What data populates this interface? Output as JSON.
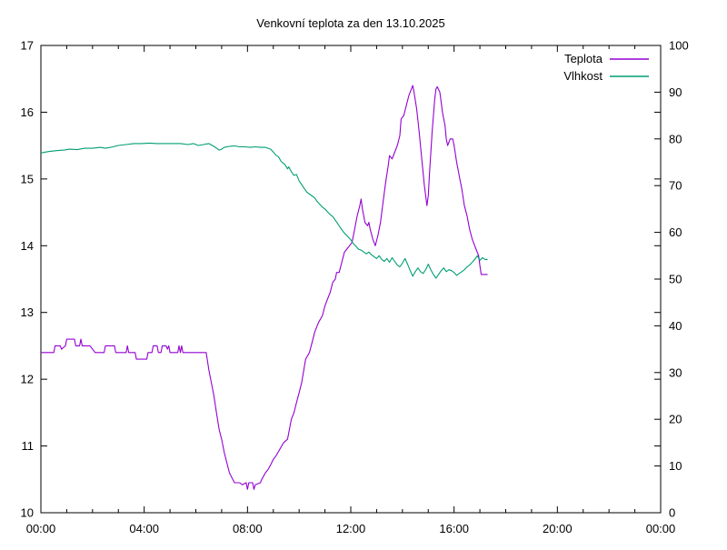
{
  "chart_data": {
    "type": "line",
    "title": "Venkovní teplota za den 13.10.2025",
    "grid": "off",
    "legend_position": "top-right-inside",
    "x_axis": {
      "unit": "hours",
      "range": [
        0,
        24
      ],
      "major_ticks": [
        0,
        4,
        8,
        12,
        16,
        20,
        24
      ],
      "major_tick_labels": [
        "00:00",
        "04:00",
        "08:00",
        "12:00",
        "16:00",
        "20:00",
        "00:00"
      ],
      "minor_tick_step": 1
    },
    "y_left_axis": {
      "range": [
        10,
        17
      ],
      "ticks": [
        10,
        11,
        12,
        13,
        14,
        15,
        16,
        17
      ],
      "tick_labels": [
        "10",
        "11",
        "12",
        "13",
        "14",
        "15",
        "16",
        "17"
      ]
    },
    "y_right_axis": {
      "range": [
        0,
        100
      ],
      "ticks": [
        0,
        10,
        20,
        30,
        40,
        50,
        60,
        70,
        80,
        90,
        100
      ],
      "tick_labels": [
        "0",
        "10",
        "20",
        "30",
        "40",
        "50",
        "60",
        "70",
        "80",
        "90",
        "100"
      ],
      "mirror_left_ticks": [
        11,
        12,
        13,
        14,
        15,
        16
      ]
    },
    "series": [
      {
        "name": "Teplota",
        "axis": "left",
        "color": "#9400d3",
        "points": [
          [
            0.0,
            12.4
          ],
          [
            0.5,
            12.4
          ],
          [
            0.55,
            12.5
          ],
          [
            0.75,
            12.5
          ],
          [
            0.8,
            12.45
          ],
          [
            0.95,
            12.5
          ],
          [
            1.0,
            12.6
          ],
          [
            1.3,
            12.6
          ],
          [
            1.35,
            12.5
          ],
          [
            1.5,
            12.5
          ],
          [
            1.55,
            12.6
          ],
          [
            1.6,
            12.5
          ],
          [
            1.9,
            12.5
          ],
          [
            2.0,
            12.45
          ],
          [
            2.1,
            12.4
          ],
          [
            2.45,
            12.4
          ],
          [
            2.5,
            12.5
          ],
          [
            2.85,
            12.5
          ],
          [
            2.9,
            12.4
          ],
          [
            3.3,
            12.4
          ],
          [
            3.35,
            12.5
          ],
          [
            3.4,
            12.4
          ],
          [
            3.65,
            12.4
          ],
          [
            3.7,
            12.3
          ],
          [
            4.1,
            12.3
          ],
          [
            4.15,
            12.4
          ],
          [
            4.3,
            12.4
          ],
          [
            4.35,
            12.5
          ],
          [
            4.5,
            12.5
          ],
          [
            4.55,
            12.4
          ],
          [
            4.65,
            12.4
          ],
          [
            4.7,
            12.5
          ],
          [
            4.85,
            12.5
          ],
          [
            4.9,
            12.45
          ],
          [
            4.95,
            12.5
          ],
          [
            5.0,
            12.4
          ],
          [
            5.3,
            12.4
          ],
          [
            5.35,
            12.5
          ],
          [
            5.4,
            12.4
          ],
          [
            5.45,
            12.5
          ],
          [
            5.5,
            12.4
          ],
          [
            6.4,
            12.4
          ],
          [
            6.5,
            12.15
          ],
          [
            6.55,
            12.05
          ],
          [
            6.65,
            11.85
          ],
          [
            6.7,
            11.75
          ],
          [
            6.8,
            11.5
          ],
          [
            6.9,
            11.25
          ],
          [
            7.0,
            11.1
          ],
          [
            7.1,
            10.9
          ],
          [
            7.2,
            10.75
          ],
          [
            7.3,
            10.6
          ],
          [
            7.4,
            10.52
          ],
          [
            7.5,
            10.45
          ],
          [
            7.7,
            10.45
          ],
          [
            7.8,
            10.42
          ],
          [
            7.95,
            10.45
          ],
          [
            8.0,
            10.35
          ],
          [
            8.05,
            10.45
          ],
          [
            8.2,
            10.45
          ],
          [
            8.25,
            10.35
          ],
          [
            8.3,
            10.42
          ],
          [
            8.5,
            10.45
          ],
          [
            8.55,
            10.5
          ],
          [
            8.7,
            10.6
          ],
          [
            8.8,
            10.65
          ],
          [
            8.9,
            10.72
          ],
          [
            9.0,
            10.8
          ],
          [
            9.1,
            10.85
          ],
          [
            9.25,
            10.95
          ],
          [
            9.4,
            11.05
          ],
          [
            9.55,
            11.1
          ],
          [
            9.6,
            11.2
          ],
          [
            9.7,
            11.4
          ],
          [
            9.8,
            11.5
          ],
          [
            9.9,
            11.65
          ],
          [
            10.0,
            11.8
          ],
          [
            10.1,
            11.95
          ],
          [
            10.25,
            12.3
          ],
          [
            10.4,
            12.4
          ],
          [
            10.5,
            12.55
          ],
          [
            10.6,
            12.7
          ],
          [
            10.75,
            12.85
          ],
          [
            10.9,
            12.95
          ],
          [
            11.0,
            13.1
          ],
          [
            11.1,
            13.2
          ],
          [
            11.2,
            13.3
          ],
          [
            11.3,
            13.45
          ],
          [
            11.4,
            13.5
          ],
          [
            11.45,
            13.6
          ],
          [
            11.55,
            13.6
          ],
          [
            11.65,
            13.75
          ],
          [
            11.75,
            13.9
          ],
          [
            11.85,
            13.95
          ],
          [
            11.95,
            14.0
          ],
          [
            12.05,
            14.05
          ],
          [
            12.15,
            14.25
          ],
          [
            12.25,
            14.45
          ],
          [
            12.35,
            14.6
          ],
          [
            12.4,
            14.7
          ],
          [
            12.45,
            14.55
          ],
          [
            12.5,
            14.45
          ],
          [
            12.55,
            14.35
          ],
          [
            12.65,
            14.3
          ],
          [
            12.7,
            14.35
          ],
          [
            12.75,
            14.25
          ],
          [
            12.85,
            14.1
          ],
          [
            12.95,
            14.0
          ],
          [
            13.05,
            14.15
          ],
          [
            13.15,
            14.35
          ],
          [
            13.25,
            14.65
          ],
          [
            13.35,
            14.95
          ],
          [
            13.45,
            15.2
          ],
          [
            13.5,
            15.35
          ],
          [
            13.6,
            15.3
          ],
          [
            13.7,
            15.4
          ],
          [
            13.8,
            15.5
          ],
          [
            13.9,
            15.65
          ],
          [
            13.95,
            15.9
          ],
          [
            14.05,
            15.95
          ],
          [
            14.15,
            16.1
          ],
          [
            14.25,
            16.25
          ],
          [
            14.35,
            16.35
          ],
          [
            14.4,
            16.4
          ],
          [
            14.45,
            16.3
          ],
          [
            14.55,
            16.05
          ],
          [
            14.65,
            15.7
          ],
          [
            14.75,
            15.3
          ],
          [
            14.85,
            14.9
          ],
          [
            14.95,
            14.6
          ],
          [
            15.0,
            14.75
          ],
          [
            15.05,
            15.1
          ],
          [
            15.15,
            15.7
          ],
          [
            15.25,
            16.2
          ],
          [
            15.3,
            16.35
          ],
          [
            15.35,
            16.38
          ],
          [
            15.45,
            16.3
          ],
          [
            15.5,
            16.15
          ],
          [
            15.55,
            16.0
          ],
          [
            15.65,
            15.8
          ],
          [
            15.7,
            15.6
          ],
          [
            15.75,
            15.5
          ],
          [
            15.8,
            15.55
          ],
          [
            15.85,
            15.6
          ],
          [
            15.95,
            15.6
          ],
          [
            16.0,
            15.5
          ],
          [
            16.1,
            15.25
          ],
          [
            16.2,
            15.05
          ],
          [
            16.3,
            14.85
          ],
          [
            16.4,
            14.6
          ],
          [
            16.5,
            14.45
          ],
          [
            16.6,
            14.25
          ],
          [
            16.7,
            14.1
          ],
          [
            16.8,
            14.0
          ],
          [
            16.85,
            13.95
          ],
          [
            16.95,
            13.85
          ],
          [
            17.0,
            13.7
          ],
          [
            17.05,
            13.57
          ],
          [
            17.3,
            13.57
          ]
        ]
      },
      {
        "name": "Vlhkost",
        "axis": "right",
        "color": "#009e73",
        "points": [
          [
            0.0,
            77.0
          ],
          [
            0.3,
            77.3
          ],
          [
            0.6,
            77.5
          ],
          [
            0.9,
            77.6
          ],
          [
            1.1,
            77.8
          ],
          [
            1.4,
            77.7
          ],
          [
            1.7,
            78.0
          ],
          [
            2.0,
            78.0
          ],
          [
            2.3,
            78.2
          ],
          [
            2.5,
            78.0
          ],
          [
            2.8,
            78.3
          ],
          [
            3.0,
            78.6
          ],
          [
            3.3,
            78.8
          ],
          [
            3.6,
            79.0
          ],
          [
            3.9,
            79.0
          ],
          [
            4.2,
            79.1
          ],
          [
            4.5,
            79.0
          ],
          [
            4.8,
            79.0
          ],
          [
            5.1,
            79.0
          ],
          [
            5.4,
            79.0
          ],
          [
            5.7,
            78.8
          ],
          [
            5.9,
            79.0
          ],
          [
            6.1,
            78.6
          ],
          [
            6.3,
            78.8
          ],
          [
            6.5,
            79.0
          ],
          [
            6.7,
            78.4
          ],
          [
            6.9,
            77.6
          ],
          [
            7.0,
            77.8
          ],
          [
            7.1,
            78.2
          ],
          [
            7.3,
            78.4
          ],
          [
            7.5,
            78.5
          ],
          [
            7.7,
            78.3
          ],
          [
            7.9,
            78.3
          ],
          [
            8.1,
            78.2
          ],
          [
            8.3,
            78.3
          ],
          [
            8.5,
            78.2
          ],
          [
            8.7,
            78.2
          ],
          [
            8.9,
            77.8
          ],
          [
            9.0,
            77.2
          ],
          [
            9.1,
            76.5
          ],
          [
            9.2,
            76.2
          ],
          [
            9.3,
            75.2
          ],
          [
            9.45,
            74.5
          ],
          [
            9.55,
            73.6
          ],
          [
            9.6,
            74.0
          ],
          [
            9.7,
            73.0
          ],
          [
            9.8,
            72.2
          ],
          [
            9.9,
            72.4
          ],
          [
            10.0,
            71.0
          ],
          [
            10.1,
            70.2
          ],
          [
            10.2,
            69.4
          ],
          [
            10.3,
            68.6
          ],
          [
            10.4,
            68.2
          ],
          [
            10.5,
            67.8
          ],
          [
            10.6,
            67.4
          ],
          [
            10.7,
            66.6
          ],
          [
            10.8,
            66.0
          ],
          [
            10.9,
            65.4
          ],
          [
            11.0,
            65.0
          ],
          [
            11.1,
            64.4
          ],
          [
            11.2,
            63.8
          ],
          [
            11.3,
            63.4
          ],
          [
            11.4,
            62.6
          ],
          [
            11.5,
            61.8
          ],
          [
            11.6,
            61.0
          ],
          [
            11.7,
            60.2
          ],
          [
            11.8,
            59.6
          ],
          [
            11.9,
            59.0
          ],
          [
            12.0,
            58.4
          ],
          [
            12.1,
            57.6
          ],
          [
            12.2,
            57.0
          ],
          [
            12.3,
            56.4
          ],
          [
            12.4,
            56.2
          ],
          [
            12.5,
            55.8
          ],
          [
            12.6,
            55.4
          ],
          [
            12.7,
            55.8
          ],
          [
            12.8,
            55.2
          ],
          [
            12.9,
            54.8
          ],
          [
            13.0,
            54.4
          ],
          [
            13.1,
            55.0
          ],
          [
            13.2,
            54.2
          ],
          [
            13.3,
            53.8
          ],
          [
            13.4,
            54.4
          ],
          [
            13.5,
            53.6
          ],
          [
            13.6,
            54.6
          ],
          [
            13.7,
            53.8
          ],
          [
            13.8,
            53.0
          ],
          [
            13.9,
            52.6
          ],
          [
            14.0,
            53.4
          ],
          [
            14.1,
            54.4
          ],
          [
            14.2,
            53.2
          ],
          [
            14.3,
            51.8
          ],
          [
            14.4,
            50.6
          ],
          [
            14.5,
            51.6
          ],
          [
            14.6,
            52.4
          ],
          [
            14.7,
            51.6
          ],
          [
            14.8,
            51.2
          ],
          [
            14.9,
            52.0
          ],
          [
            15.0,
            53.2
          ],
          [
            15.1,
            52.0
          ],
          [
            15.2,
            51.0
          ],
          [
            15.3,
            50.2
          ],
          [
            15.4,
            51.0
          ],
          [
            15.5,
            51.8
          ],
          [
            15.6,
            52.4
          ],
          [
            15.7,
            51.6
          ],
          [
            15.8,
            52.0
          ],
          [
            15.9,
            51.8
          ],
          [
            16.0,
            51.4
          ],
          [
            16.1,
            50.8
          ],
          [
            16.2,
            51.2
          ],
          [
            16.3,
            51.6
          ],
          [
            16.4,
            52.0
          ],
          [
            16.5,
            52.6
          ],
          [
            16.6,
            53.0
          ],
          [
            16.7,
            53.6
          ],
          [
            16.8,
            54.2
          ],
          [
            16.9,
            55.0
          ],
          [
            17.0,
            54.0
          ],
          [
            17.1,
            54.6
          ],
          [
            17.2,
            54.2
          ],
          [
            17.3,
            54.2
          ]
        ]
      }
    ]
  }
}
